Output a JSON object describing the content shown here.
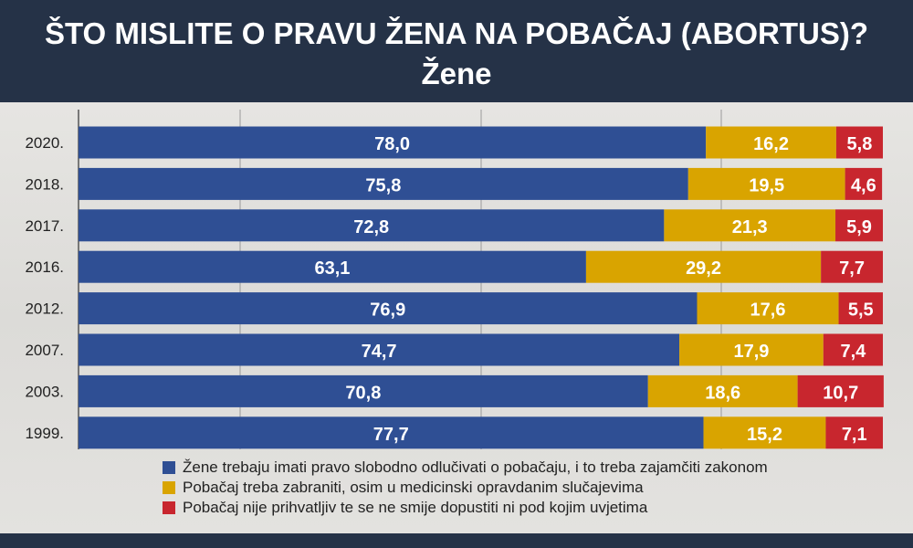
{
  "header": {
    "title": "ŠTO MISLITE O PRAVU ŽENA NA POBAČAJ (ABORTUS)?",
    "subtitle": "Žene"
  },
  "colors": {
    "background_dark": "#253247",
    "panel": "#e4e3e0",
    "series": [
      "#2f4f94",
      "#d9a400",
      "#c8262e"
    ]
  },
  "chart_data": {
    "type": "bar",
    "orientation": "horizontal",
    "stacked": true,
    "title": "ŠTO MISLITE O PRAVU ŽENA NA POBAČAJ (ABORTUS)?",
    "subtitle": "Žene",
    "categories": [
      "2020.",
      "2018.",
      "2017.",
      "2016.",
      "2012.",
      "2007.",
      "2003.",
      "1999."
    ],
    "series": [
      {
        "name": "Žene trebaju imati pravo slobodno odlučivati o pobačaju, i to treba zajamčiti zakonom",
        "color": "#2f4f94",
        "values": [
          78.0,
          75.8,
          72.8,
          63.1,
          76.9,
          74.7,
          70.8,
          77.7
        ],
        "labels": [
          "78,0",
          "75,8",
          "72,8",
          "63,1",
          "76,9",
          "74,7",
          "70,8",
          "77,7"
        ]
      },
      {
        "name": "Pobačaj treba zabraniti, osim u medicinski opravdanim slučajevima",
        "color": "#d9a400",
        "values": [
          16.2,
          19.5,
          21.3,
          29.2,
          17.6,
          17.9,
          18.6,
          15.2
        ],
        "labels": [
          "16,2",
          "19,5",
          "21,3",
          "29,2",
          "17,6",
          "17,9",
          "18,6",
          "15,2"
        ]
      },
      {
        "name": "Pobačaj nije prihvatljiv te se ne smije dopustiti ni pod kojim uvjetima",
        "color": "#c8262e",
        "values": [
          5.8,
          4.6,
          5.9,
          7.7,
          5.5,
          7.4,
          10.7,
          7.1
        ],
        "labels": [
          "5,8",
          "4,6",
          "5,9",
          "7,7",
          "5,5",
          "7,4",
          "10,7",
          "7,1"
        ]
      }
    ],
    "xlim": [
      0,
      100
    ],
    "grid": true,
    "legend_position": "bottom"
  }
}
